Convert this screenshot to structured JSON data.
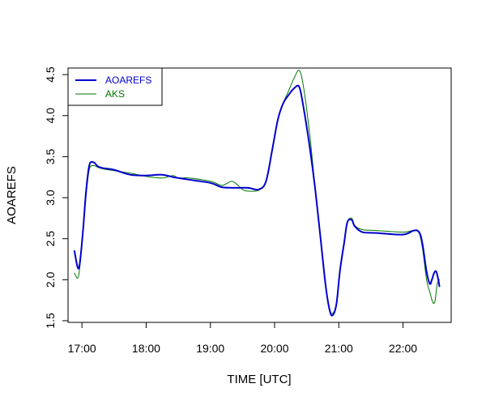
{
  "chart_data": {
    "type": "line",
    "title": "",
    "xlabel": "TIME [UTC]",
    "ylabel": "AOAREFS",
    "x_ticks": [
      "17:00",
      "18:00",
      "19:00",
      "20:00",
      "21:00",
      "22:00"
    ],
    "y_ticks": [
      "1.5",
      "2.0",
      "2.5",
      "3.0",
      "3.5",
      "4.0",
      "4.5"
    ],
    "xlim": [
      "16:47",
      "22:45"
    ],
    "ylim": [
      1.48,
      4.58
    ],
    "grid": false,
    "legend_position": "top-left",
    "series": [
      {
        "name": "AOAREFS",
        "color": "#0000CC",
        "x": [
          "16:53",
          "16:56",
          "16:58",
          "17:01",
          "17:04",
          "17:07",
          "17:11",
          "17:15",
          "17:20",
          "17:30",
          "17:45",
          "18:00",
          "18:15",
          "18:25",
          "18:30",
          "18:40",
          "19:00",
          "19:10",
          "19:20",
          "19:35",
          "19:45",
          "19:52",
          "19:58",
          "20:03",
          "20:08",
          "20:13",
          "20:18",
          "20:23",
          "20:27",
          "20:33",
          "20:38",
          "20:43",
          "20:48",
          "20:52",
          "20:55",
          "20:58",
          "21:01",
          "21:05",
          "21:08",
          "21:12",
          "21:15",
          "21:22",
          "21:35",
          "22:00",
          "22:10",
          "22:15",
          "22:18",
          "22:22",
          "22:25",
          "22:27",
          "22:29",
          "22:31",
          "22:33",
          "22:34"
        ],
        "y": [
          2.35,
          2.15,
          2.2,
          2.6,
          3.1,
          3.4,
          3.43,
          3.38,
          3.36,
          3.34,
          3.28,
          3.27,
          3.28,
          3.25,
          3.24,
          3.22,
          3.18,
          3.13,
          3.12,
          3.12,
          3.1,
          3.2,
          3.6,
          3.95,
          4.15,
          4.25,
          4.33,
          4.35,
          4.1,
          3.6,
          3.1,
          2.5,
          1.9,
          1.6,
          1.58,
          1.72,
          2.1,
          2.45,
          2.7,
          2.73,
          2.65,
          2.58,
          2.57,
          2.55,
          2.6,
          2.58,
          2.45,
          2.1,
          1.95,
          2.0,
          2.08,
          2.1,
          2.0,
          1.92
        ]
      },
      {
        "name": "AKS",
        "color": "#007700",
        "x": [
          "16:53",
          "16:56",
          "16:58",
          "17:01",
          "17:04",
          "17:07",
          "17:11",
          "17:15",
          "17:20",
          "17:30",
          "17:45",
          "18:00",
          "18:15",
          "18:25",
          "18:30",
          "18:40",
          "19:00",
          "19:10",
          "19:15",
          "19:20",
          "19:25",
          "19:30",
          "19:35",
          "19:45",
          "19:52",
          "19:58",
          "20:03",
          "20:08",
          "20:13",
          "20:18",
          "20:23",
          "20:27",
          "20:33",
          "20:38",
          "20:43",
          "20:48",
          "20:52",
          "20:55",
          "20:58",
          "21:01",
          "21:05",
          "21:08",
          "21:12",
          "21:15",
          "21:22",
          "21:35",
          "22:00",
          "22:10",
          "22:15",
          "22:18",
          "22:22",
          "22:25",
          "22:28",
          "22:30",
          "22:32",
          "22:34"
        ],
        "y": [
          2.08,
          2.02,
          2.15,
          2.6,
          3.05,
          3.35,
          3.39,
          3.37,
          3.35,
          3.33,
          3.3,
          3.26,
          3.24,
          3.27,
          3.24,
          3.24,
          3.2,
          3.15,
          3.17,
          3.2,
          3.16,
          3.1,
          3.08,
          3.09,
          3.2,
          3.6,
          3.95,
          4.15,
          4.3,
          4.45,
          4.55,
          4.35,
          3.75,
          3.1,
          2.5,
          1.9,
          1.62,
          1.6,
          1.72,
          2.1,
          2.45,
          2.7,
          2.75,
          2.66,
          2.61,
          2.6,
          2.58,
          2.6,
          2.57,
          2.4,
          2.0,
          1.85,
          1.72,
          1.75,
          1.95,
          2.0
        ]
      }
    ]
  }
}
